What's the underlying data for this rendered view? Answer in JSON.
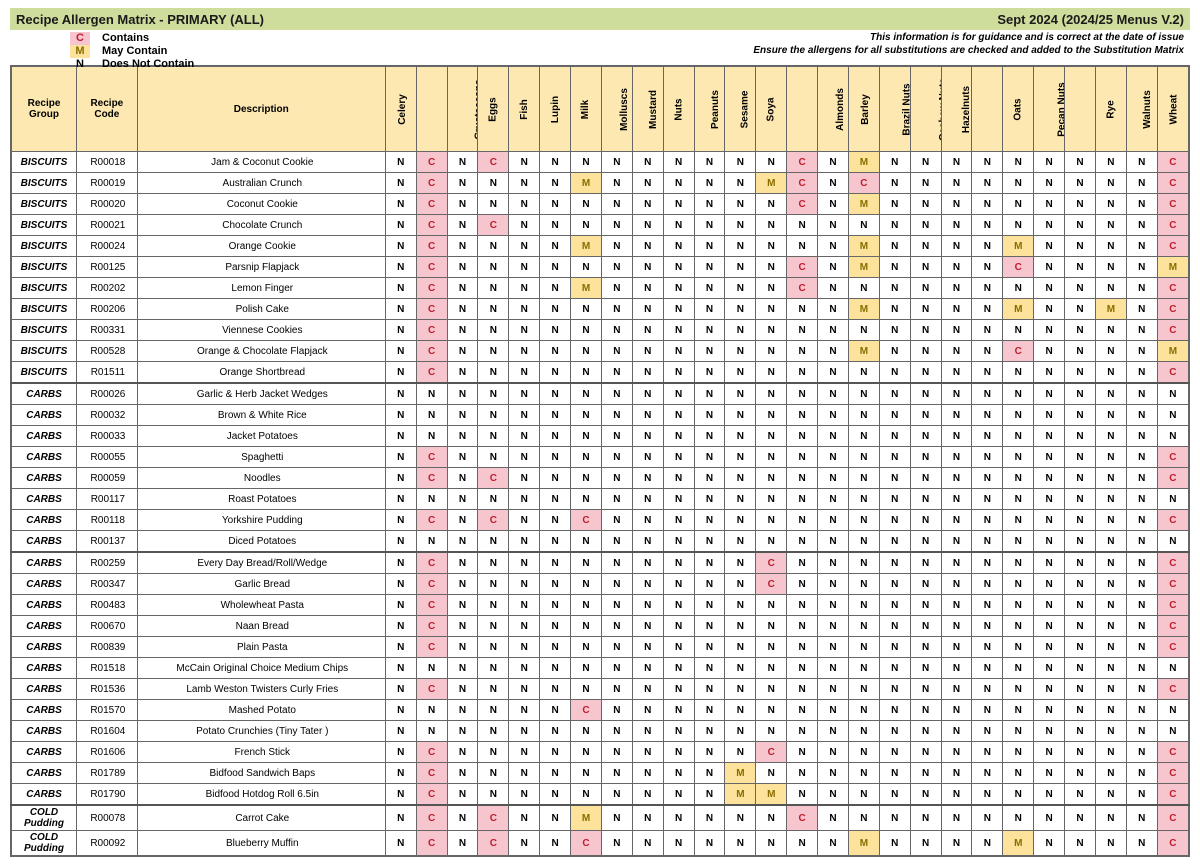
{
  "header": {
    "title": "Recipe Allergen Matrix - PRIMARY (ALL)",
    "version": "Sept 2024 (2024/25 Menus V.2)"
  },
  "legend": {
    "c_sym": "C",
    "c_text": "Contains",
    "m_sym": "M",
    "m_text": "May Contain",
    "n_sym": "N",
    "n_text": "Does Not Contain"
  },
  "disclaimer": {
    "line1": "This information is for guidance and is correct at the date of issue",
    "line2": "Ensure the allergens for all substitutions are checked and added to the Substitution Matrix"
  },
  "columns": {
    "group_hdr": "Recipe Group",
    "code_hdr": "Recipe Code",
    "desc_hdr": "Description",
    "allergens": [
      "Celery",
      "Cereals containing Gluten",
      "Crustaceans",
      "Eggs",
      "Fish",
      "Lupin",
      "Milk",
      "Molluscs",
      "Mustard",
      "Nuts",
      "Peanuts",
      "Sesame",
      "Soya",
      "Sulphur Dioxide & Sulphites",
      "Almonds",
      "Barley",
      "Brazil Nuts",
      "Cashew Nuts",
      "Hazelnuts",
      "Macadamia Nuts",
      "Oats",
      "Pecan Nuts",
      "Pistachio Nuts",
      "Rye",
      "Walnuts",
      "Wheat"
    ]
  },
  "rows": [
    {
      "group": "BISCUITS",
      "code": "R00018",
      "desc": "Jam & Coconut Cookie",
      "v": [
        "N",
        "C",
        "N",
        "C",
        "N",
        "N",
        "N",
        "N",
        "N",
        "N",
        "N",
        "N",
        "N",
        "C",
        "N",
        "M",
        "N",
        "N",
        "N",
        "N",
        "N",
        "N",
        "N",
        "N",
        "N",
        "C"
      ]
    },
    {
      "group": "BISCUITS",
      "code": "R00019",
      "desc": "Australian Crunch",
      "v": [
        "N",
        "C",
        "N",
        "N",
        "N",
        "N",
        "M",
        "N",
        "N",
        "N",
        "N",
        "N",
        "M",
        "C",
        "N",
        "C",
        "N",
        "N",
        "N",
        "N",
        "N",
        "N",
        "N",
        "N",
        "N",
        "C"
      ]
    },
    {
      "group": "BISCUITS",
      "code": "R00020",
      "desc": "Coconut Cookie",
      "v": [
        "N",
        "C",
        "N",
        "N",
        "N",
        "N",
        "N",
        "N",
        "N",
        "N",
        "N",
        "N",
        "N",
        "C",
        "N",
        "M",
        "N",
        "N",
        "N",
        "N",
        "N",
        "N",
        "N",
        "N",
        "N",
        "C"
      ]
    },
    {
      "group": "BISCUITS",
      "code": "R00021",
      "desc": "Chocolate Crunch",
      "v": [
        "N",
        "C",
        "N",
        "C",
        "N",
        "N",
        "N",
        "N",
        "N",
        "N",
        "N",
        "N",
        "N",
        "N",
        "N",
        "N",
        "N",
        "N",
        "N",
        "N",
        "N",
        "N",
        "N",
        "N",
        "N",
        "C"
      ]
    },
    {
      "group": "BISCUITS",
      "code": "R00024",
      "desc": "Orange Cookie",
      "v": [
        "N",
        "C",
        "N",
        "N",
        "N",
        "N",
        "M",
        "N",
        "N",
        "N",
        "N",
        "N",
        "N",
        "N",
        "N",
        "M",
        "N",
        "N",
        "N",
        "N",
        "M",
        "N",
        "N",
        "N",
        "N",
        "C"
      ]
    },
    {
      "group": "BISCUITS",
      "code": "R00125",
      "desc": "Parsnip Flapjack",
      "v": [
        "N",
        "C",
        "N",
        "N",
        "N",
        "N",
        "N",
        "N",
        "N",
        "N",
        "N",
        "N",
        "N",
        "C",
        "N",
        "M",
        "N",
        "N",
        "N",
        "N",
        "C",
        "N",
        "N",
        "N",
        "N",
        "M"
      ]
    },
    {
      "group": "BISCUITS",
      "code": "R00202",
      "desc": "Lemon Finger",
      "v": [
        "N",
        "C",
        "N",
        "N",
        "N",
        "N",
        "M",
        "N",
        "N",
        "N",
        "N",
        "N",
        "N",
        "C",
        "N",
        "N",
        "N",
        "N",
        "N",
        "N",
        "N",
        "N",
        "N",
        "N",
        "N",
        "C"
      ]
    },
    {
      "group": "BISCUITS",
      "code": "R00206",
      "desc": "Polish Cake",
      "v": [
        "N",
        "C",
        "N",
        "N",
        "N",
        "N",
        "N",
        "N",
        "N",
        "N",
        "N",
        "N",
        "N",
        "N",
        "N",
        "M",
        "N",
        "N",
        "N",
        "N",
        "M",
        "N",
        "N",
        "M",
        "N",
        "C"
      ]
    },
    {
      "group": "BISCUITS",
      "code": "R00331",
      "desc": "Viennese Cookies",
      "v": [
        "N",
        "C",
        "N",
        "N",
        "N",
        "N",
        "N",
        "N",
        "N",
        "N",
        "N",
        "N",
        "N",
        "N",
        "N",
        "N",
        "N",
        "N",
        "N",
        "N",
        "N",
        "N",
        "N",
        "N",
        "N",
        "C"
      ]
    },
    {
      "group": "BISCUITS",
      "code": "R00528",
      "desc": "Orange & Chocolate Flapjack",
      "v": [
        "N",
        "C",
        "N",
        "N",
        "N",
        "N",
        "N",
        "N",
        "N",
        "N",
        "N",
        "N",
        "N",
        "N",
        "N",
        "M",
        "N",
        "N",
        "N",
        "N",
        "C",
        "N",
        "N",
        "N",
        "N",
        "M"
      ]
    },
    {
      "group": "BISCUITS",
      "code": "R01511",
      "desc": "Orange Shortbread",
      "v": [
        "N",
        "C",
        "N",
        "N",
        "N",
        "N",
        "N",
        "N",
        "N",
        "N",
        "N",
        "N",
        "N",
        "N",
        "N",
        "N",
        "N",
        "N",
        "N",
        "N",
        "N",
        "N",
        "N",
        "N",
        "N",
        "C"
      ]
    },
    {
      "group": "CARBS",
      "code": "R00026",
      "desc": "Garlic & Herb Jacket Wedges",
      "v": [
        "N",
        "N",
        "N",
        "N",
        "N",
        "N",
        "N",
        "N",
        "N",
        "N",
        "N",
        "N",
        "N",
        "N",
        "N",
        "N",
        "N",
        "N",
        "N",
        "N",
        "N",
        "N",
        "N",
        "N",
        "N",
        "N"
      ],
      "sep": true
    },
    {
      "group": "CARBS",
      "code": "R00032",
      "desc": "Brown & White Rice",
      "v": [
        "N",
        "N",
        "N",
        "N",
        "N",
        "N",
        "N",
        "N",
        "N",
        "N",
        "N",
        "N",
        "N",
        "N",
        "N",
        "N",
        "N",
        "N",
        "N",
        "N",
        "N",
        "N",
        "N",
        "N",
        "N",
        "N"
      ]
    },
    {
      "group": "CARBS",
      "code": "R00033",
      "desc": "Jacket Potatoes",
      "v": [
        "N",
        "N",
        "N",
        "N",
        "N",
        "N",
        "N",
        "N",
        "N",
        "N",
        "N",
        "N",
        "N",
        "N",
        "N",
        "N",
        "N",
        "N",
        "N",
        "N",
        "N",
        "N",
        "N",
        "N",
        "N",
        "N"
      ]
    },
    {
      "group": "CARBS",
      "code": "R00055",
      "desc": "Spaghetti",
      "v": [
        "N",
        "C",
        "N",
        "N",
        "N",
        "N",
        "N",
        "N",
        "N",
        "N",
        "N",
        "N",
        "N",
        "N",
        "N",
        "N",
        "N",
        "N",
        "N",
        "N",
        "N",
        "N",
        "N",
        "N",
        "N",
        "C"
      ]
    },
    {
      "group": "CARBS",
      "code": "R00059",
      "desc": "Noodles",
      "v": [
        "N",
        "C",
        "N",
        "C",
        "N",
        "N",
        "N",
        "N",
        "N",
        "N",
        "N",
        "N",
        "N",
        "N",
        "N",
        "N",
        "N",
        "N",
        "N",
        "N",
        "N",
        "N",
        "N",
        "N",
        "N",
        "C"
      ]
    },
    {
      "group": "CARBS",
      "code": "R00117",
      "desc": "Roast Potatoes",
      "v": [
        "N",
        "N",
        "N",
        "N",
        "N",
        "N",
        "N",
        "N",
        "N",
        "N",
        "N",
        "N",
        "N",
        "N",
        "N",
        "N",
        "N",
        "N",
        "N",
        "N",
        "N",
        "N",
        "N",
        "N",
        "N",
        "N"
      ]
    },
    {
      "group": "CARBS",
      "code": "R00118",
      "desc": "Yorkshire Pudding",
      "v": [
        "N",
        "C",
        "N",
        "C",
        "N",
        "N",
        "C",
        "N",
        "N",
        "N",
        "N",
        "N",
        "N",
        "N",
        "N",
        "N",
        "N",
        "N",
        "N",
        "N",
        "N",
        "N",
        "N",
        "N",
        "N",
        "C"
      ]
    },
    {
      "group": "CARBS",
      "code": "R00137",
      "desc": "Diced Potatoes",
      "v": [
        "N",
        "N",
        "N",
        "N",
        "N",
        "N",
        "N",
        "N",
        "N",
        "N",
        "N",
        "N",
        "N",
        "N",
        "N",
        "N",
        "N",
        "N",
        "N",
        "N",
        "N",
        "N",
        "N",
        "N",
        "N",
        "N"
      ]
    },
    {
      "group": "CARBS",
      "code": "R00259",
      "desc": "Every Day Bread/Roll/Wedge",
      "v": [
        "N",
        "C",
        "N",
        "N",
        "N",
        "N",
        "N",
        "N",
        "N",
        "N",
        "N",
        "N",
        "C",
        "N",
        "N",
        "N",
        "N",
        "N",
        "N",
        "N",
        "N",
        "N",
        "N",
        "N",
        "N",
        "C"
      ],
      "sep": true
    },
    {
      "group": "CARBS",
      "code": "R00347",
      "desc": "Garlic Bread",
      "v": [
        "N",
        "C",
        "N",
        "N",
        "N",
        "N",
        "N",
        "N",
        "N",
        "N",
        "N",
        "N",
        "C",
        "N",
        "N",
        "N",
        "N",
        "N",
        "N",
        "N",
        "N",
        "N",
        "N",
        "N",
        "N",
        "C"
      ]
    },
    {
      "group": "CARBS",
      "code": "R00483",
      "desc": "Wholewheat Pasta",
      "v": [
        "N",
        "C",
        "N",
        "N",
        "N",
        "N",
        "N",
        "N",
        "N",
        "N",
        "N",
        "N",
        "N",
        "N",
        "N",
        "N",
        "N",
        "N",
        "N",
        "N",
        "N",
        "N",
        "N",
        "N",
        "N",
        "C"
      ]
    },
    {
      "group": "CARBS",
      "code": "R00670",
      "desc": "Naan Bread",
      "v": [
        "N",
        "C",
        "N",
        "N",
        "N",
        "N",
        "N",
        "N",
        "N",
        "N",
        "N",
        "N",
        "N",
        "N",
        "N",
        "N",
        "N",
        "N",
        "N",
        "N",
        "N",
        "N",
        "N",
        "N",
        "N",
        "C"
      ]
    },
    {
      "group": "CARBS",
      "code": "R00839",
      "desc": "Plain Pasta",
      "v": [
        "N",
        "C",
        "N",
        "N",
        "N",
        "N",
        "N",
        "N",
        "N",
        "N",
        "N",
        "N",
        "N",
        "N",
        "N",
        "N",
        "N",
        "N",
        "N",
        "N",
        "N",
        "N",
        "N",
        "N",
        "N",
        "C"
      ]
    },
    {
      "group": "CARBS",
      "code": "R01518",
      "desc": "McCain Original Choice Medium Chips",
      "v": [
        "N",
        "N",
        "N",
        "N",
        "N",
        "N",
        "N",
        "N",
        "N",
        "N",
        "N",
        "N",
        "N",
        "N",
        "N",
        "N",
        "N",
        "N",
        "N",
        "N",
        "N",
        "N",
        "N",
        "N",
        "N",
        "N"
      ]
    },
    {
      "group": "CARBS",
      "code": "R01536",
      "desc": "Lamb Weston Twisters Curly Fries",
      "v": [
        "N",
        "C",
        "N",
        "N",
        "N",
        "N",
        "N",
        "N",
        "N",
        "N",
        "N",
        "N",
        "N",
        "N",
        "N",
        "N",
        "N",
        "N",
        "N",
        "N",
        "N",
        "N",
        "N",
        "N",
        "N",
        "C"
      ]
    },
    {
      "group": "CARBS",
      "code": "R01570",
      "desc": "Mashed Potato",
      "v": [
        "N",
        "N",
        "N",
        "N",
        "N",
        "N",
        "C",
        "N",
        "N",
        "N",
        "N",
        "N",
        "N",
        "N",
        "N",
        "N",
        "N",
        "N",
        "N",
        "N",
        "N",
        "N",
        "N",
        "N",
        "N",
        "N"
      ]
    },
    {
      "group": "CARBS",
      "code": "R01604",
      "desc": "Potato Crunchies (Tiny Tater )",
      "v": [
        "N",
        "N",
        "N",
        "N",
        "N",
        "N",
        "N",
        "N",
        "N",
        "N",
        "N",
        "N",
        "N",
        "N",
        "N",
        "N",
        "N",
        "N",
        "N",
        "N",
        "N",
        "N",
        "N",
        "N",
        "N",
        "N"
      ]
    },
    {
      "group": "CARBS",
      "code": "R01606",
      "desc": "French Stick",
      "v": [
        "N",
        "C",
        "N",
        "N",
        "N",
        "N",
        "N",
        "N",
        "N",
        "N",
        "N",
        "N",
        "C",
        "N",
        "N",
        "N",
        "N",
        "N",
        "N",
        "N",
        "N",
        "N",
        "N",
        "N",
        "N",
        "C"
      ]
    },
    {
      "group": "CARBS",
      "code": "R01789",
      "desc": "Bidfood Sandwich Baps",
      "v": [
        "N",
        "C",
        "N",
        "N",
        "N",
        "N",
        "N",
        "N",
        "N",
        "N",
        "N",
        "M",
        "N",
        "N",
        "N",
        "N",
        "N",
        "N",
        "N",
        "N",
        "N",
        "N",
        "N",
        "N",
        "N",
        "C"
      ]
    },
    {
      "group": "CARBS",
      "code": "R01790",
      "desc": "Bidfood Hotdog Roll 6.5in",
      "v": [
        "N",
        "C",
        "N",
        "N",
        "N",
        "N",
        "N",
        "N",
        "N",
        "N",
        "N",
        "M",
        "M",
        "N",
        "N",
        "N",
        "N",
        "N",
        "N",
        "N",
        "N",
        "N",
        "N",
        "N",
        "N",
        "C"
      ]
    },
    {
      "group": "COLD Pudding",
      "code": "R00078",
      "desc": "Carrot Cake",
      "v": [
        "N",
        "C",
        "N",
        "C",
        "N",
        "N",
        "M",
        "N",
        "N",
        "N",
        "N",
        "N",
        "N",
        "C",
        "N",
        "N",
        "N",
        "N",
        "N",
        "N",
        "N",
        "N",
        "N",
        "N",
        "N",
        "C"
      ],
      "sep": true
    },
    {
      "group": "COLD Pudding",
      "code": "R00092",
      "desc": "Blueberry Muffin",
      "v": [
        "N",
        "C",
        "N",
        "C",
        "N",
        "N",
        "C",
        "N",
        "N",
        "N",
        "N",
        "N",
        "N",
        "N",
        "N",
        "M",
        "N",
        "N",
        "N",
        "N",
        "M",
        "N",
        "N",
        "N",
        "N",
        "C"
      ]
    }
  ]
}
